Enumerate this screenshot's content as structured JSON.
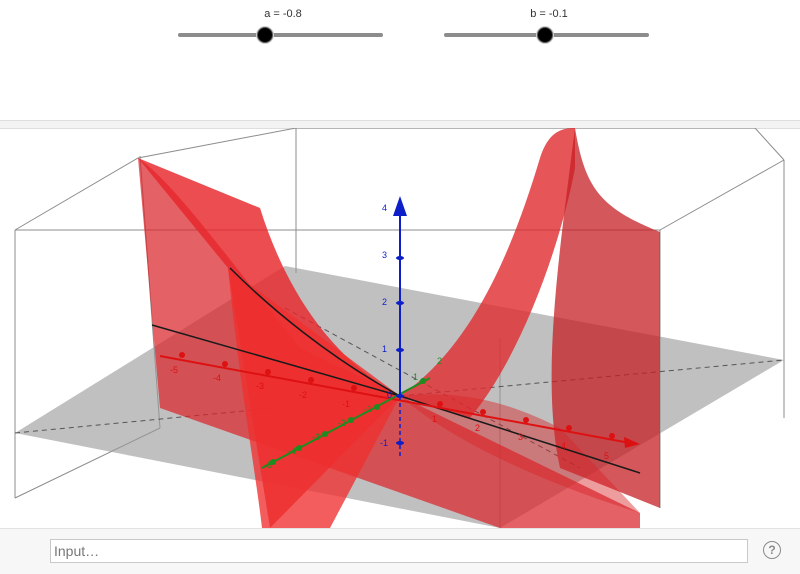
{
  "sliders": [
    {
      "name": "a",
      "label": "a = -0.8",
      "value": -0.8,
      "min": -5,
      "max": 5
    },
    {
      "name": "b",
      "label": "b = -0.1",
      "value": -0.1,
      "min": -5,
      "max": 5
    }
  ],
  "axes3d": {
    "z_ticks": [
      "-1",
      "0",
      "1",
      "2",
      "3",
      "4"
    ],
    "y_ticks": [
      "-5",
      "-4",
      "-3",
      "-2",
      "-1",
      "1",
      "2"
    ],
    "x_ticks_left": [
      "-5",
      "-4",
      "-3",
      "-2",
      "-1"
    ],
    "x_ticks_right": [
      "1",
      "2",
      "3",
      "4",
      "5"
    ]
  },
  "colors": {
    "surface": "#d9262b",
    "x_axis": "#dd1111",
    "y_axis": "#1e8c1e",
    "z_axis": "#0d1fc8",
    "plane": "#9a9a9a",
    "slider_knob": "#000000"
  },
  "input_bar": {
    "placeholder": "Input…",
    "help_icon": "question-mark-icon",
    "help_symbol": "?"
  }
}
